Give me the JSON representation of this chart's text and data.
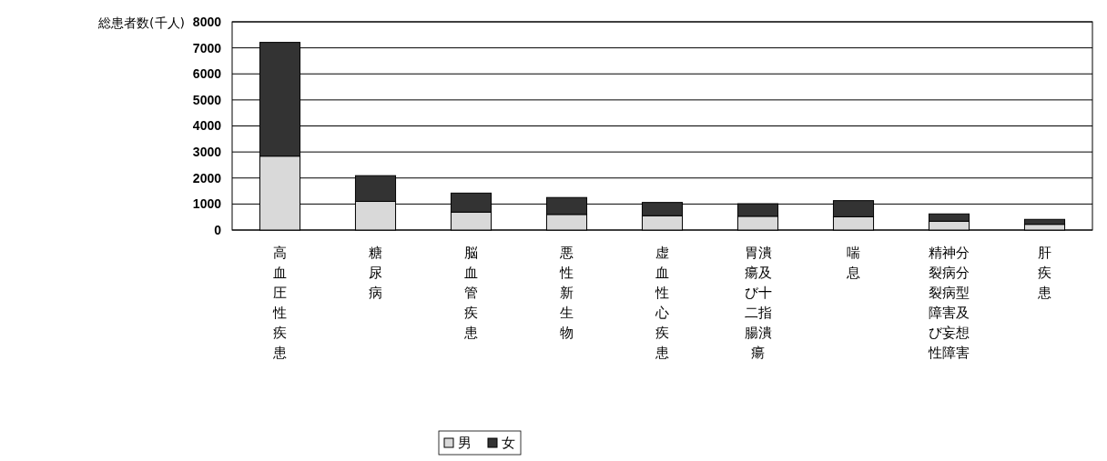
{
  "chart_data": {
    "type": "bar",
    "stacked": true,
    "ylabel": "総患者数(千人)",
    "categories": [
      "高血圧性疾患",
      "糖尿病",
      "脳血管疾患",
      "悪性新生物",
      "虚血性心疾患",
      "胃潰瘍及び十二指腸潰瘍",
      "喘息",
      "精神分裂病分裂病型障害及び妄想性障害",
      "肝疾患"
    ],
    "series": [
      {
        "name": "男",
        "color": "#d9d9d9",
        "values": [
          2840,
          1100,
          690,
          600,
          550,
          530,
          510,
          340,
          220
        ]
      },
      {
        "name": "女",
        "color": "#333333",
        "values": [
          4370,
          990,
          730,
          650,
          510,
          480,
          620,
          280,
          190
        ]
      }
    ],
    "ylim": [
      0,
      8000
    ],
    "yticks": [
      0,
      1000,
      2000,
      3000,
      4000,
      5000,
      6000,
      7000,
      8000
    ],
    "grid": "y",
    "legend": "bottom"
  }
}
